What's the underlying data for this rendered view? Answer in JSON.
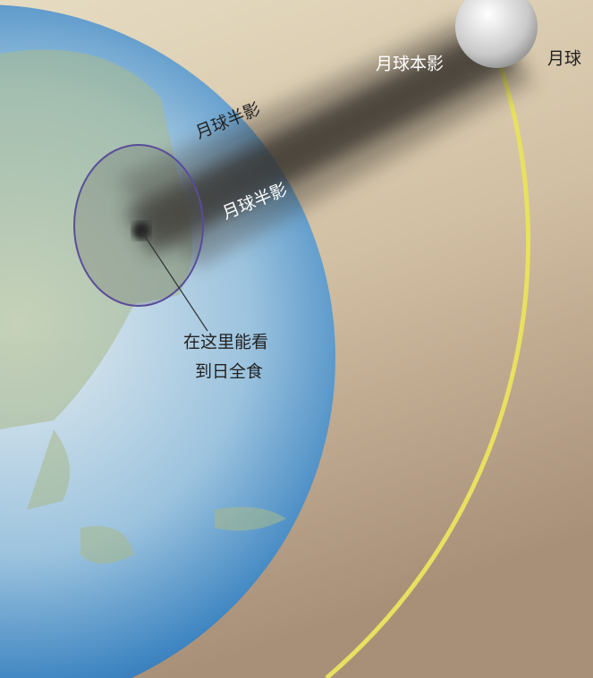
{
  "labels": {
    "umbra": "月球本影",
    "orbit": "月球",
    "penumbra_top": "月球半影",
    "penumbra_bottom": "月球半影",
    "total_eclipse_line1": "在这里能看",
    "total_eclipse_line2": "到日全食"
  }
}
